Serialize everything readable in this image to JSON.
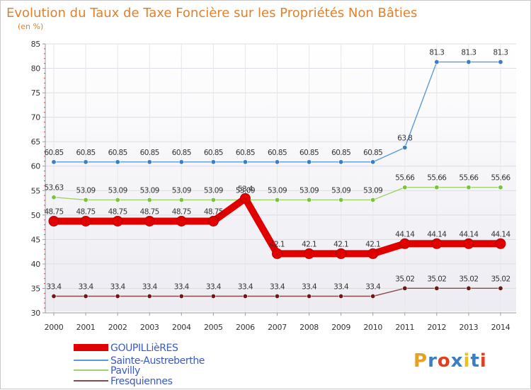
{
  "chart_data": {
    "type": "line",
    "title": "Evolution du Taux de Taxe Foncière sur les Propriétés Non Bâties",
    "subtitle": "(en %)",
    "xlabel": "",
    "ylabel": "",
    "ylim": [
      30,
      85
    ],
    "yticks": [
      30,
      35,
      40,
      45,
      50,
      55,
      60,
      65,
      70,
      75,
      80,
      85
    ],
    "grid": true,
    "legend_position": "bottom-left",
    "x": [
      "2000",
      "2001",
      "2002",
      "2003",
      "2004",
      "2005",
      "2006",
      "2007",
      "2008",
      "2009",
      "2010",
      "2011",
      "2012",
      "2013",
      "2014"
    ],
    "series": [
      {
        "name": "GOUPILLièRES",
        "color": "#e00000",
        "weight": "thick",
        "values": [
          48.75,
          48.75,
          48.75,
          48.75,
          48.75,
          48.75,
          53.4,
          42.1,
          42.1,
          42.1,
          42.1,
          44.14,
          44.14,
          44.14,
          44.14
        ],
        "labels": [
          "48.75",
          "48.75",
          "48.75",
          "48.75",
          "48.75",
          "48.75",
          "53.4",
          "42.1",
          "42.1",
          "42.1",
          "42.1",
          "44.14",
          "44.14",
          "44.14",
          "44.14"
        ]
      },
      {
        "name": "Sainte-Austreberthe",
        "color": "#5b9bd5",
        "marker": "#3a7fc4",
        "weight": "thin",
        "values": [
          60.85,
          60.85,
          60.85,
          60.85,
          60.85,
          60.85,
          60.85,
          60.85,
          60.85,
          60.85,
          60.85,
          63.8,
          81.3,
          81.3,
          81.3
        ],
        "labels": [
          "60.85",
          "60.85",
          "60.85",
          "60.85",
          "60.85",
          "60.85",
          "60.85",
          "60.85",
          "60.85",
          "60.85",
          "60.85",
          "63.8",
          "81.3",
          "81.3",
          "81.3"
        ]
      },
      {
        "name": "Pavilly",
        "color": "#9fd26a",
        "marker": "#7cc044",
        "weight": "thin",
        "values": [
          53.63,
          53.09,
          53.09,
          53.09,
          53.09,
          53.09,
          53.09,
          53.09,
          53.09,
          53.09,
          53.09,
          55.66,
          55.66,
          55.66,
          55.66
        ],
        "labels": [
          "53.63",
          "53.09",
          "53.09",
          "53.09",
          "53.09",
          "53.09",
          "53.09",
          "53.09",
          "53.09",
          "53.09",
          "53.09",
          "55.66",
          "55.66",
          "55.66",
          "55.66"
        ]
      },
      {
        "name": "Fresquiennes",
        "color": "#8b4a4a",
        "marker": "#6b1a1a",
        "weight": "thin",
        "values": [
          33.4,
          33.4,
          33.4,
          33.4,
          33.4,
          33.4,
          33.4,
          33.4,
          33.4,
          33.4,
          33.4,
          35.02,
          35.02,
          35.02,
          35.02
        ],
        "labels": [
          "33.4",
          "33.4",
          "33.4",
          "33.4",
          "33.4",
          "33.4",
          "33.4",
          "33.4",
          "33.4",
          "33.4",
          "33.4",
          "35.02",
          "35.02",
          "35.02",
          "35.02"
        ]
      }
    ]
  },
  "logo": {
    "text": "Proxiti",
    "letter_colors": [
      "#e8a020",
      "#3a7fc4",
      "#e04020",
      "#3a7fc4",
      "#e8c020",
      "#3a7fc4",
      "#e04020"
    ]
  }
}
